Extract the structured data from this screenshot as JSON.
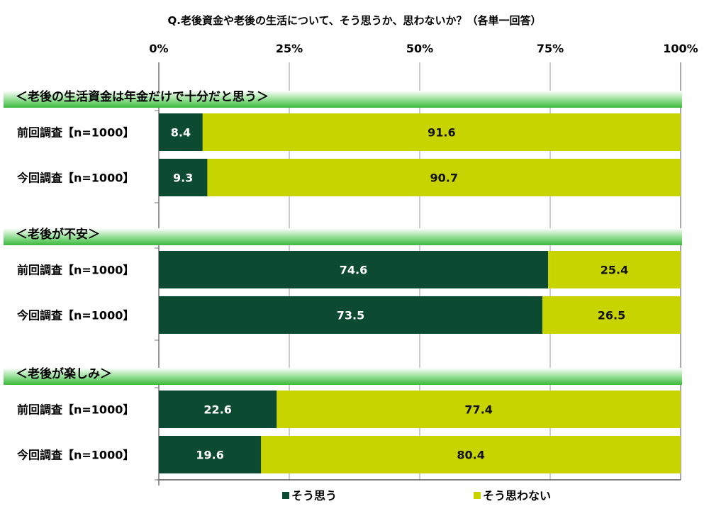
{
  "chart_data": {
    "type": "bar",
    "stacked": true,
    "orientation": "horizontal",
    "title": "Q.老後資金や老後の生活について、そう思うか、思わないか？（各単一回答）",
    "xlim": [
      0,
      100
    ],
    "xticks": [
      "0%",
      "25%",
      "50%",
      "75%",
      "100%"
    ],
    "grid": true,
    "legend_position": "bottom",
    "series_names": [
      "そう思う",
      "そう思わない"
    ],
    "colors": [
      "#0d4a32",
      "#c8d400"
    ],
    "groups": [
      {
        "label": "＜老後の生活資金は年金だけで十分だと思う＞",
        "rows": [
          {
            "label": "前回調査【n=1000】",
            "values": [
              8.4,
              91.6
            ]
          },
          {
            "label": "今回調査【n=1000】",
            "values": [
              9.3,
              90.7
            ]
          }
        ]
      },
      {
        "label": "＜老後が不安＞",
        "rows": [
          {
            "label": "前回調査【n=1000】",
            "values": [
              74.6,
              25.4
            ]
          },
          {
            "label": "今回調査【n=1000】",
            "values": [
              73.5,
              26.5
            ]
          }
        ]
      },
      {
        "label": "＜老後が楽しみ＞",
        "rows": [
          {
            "label": "前回調査【n=1000】",
            "values": [
              22.6,
              77.4
            ]
          },
          {
            "label": "今回調査【n=1000】",
            "values": [
              19.6,
              80.4
            ]
          }
        ]
      }
    ]
  }
}
